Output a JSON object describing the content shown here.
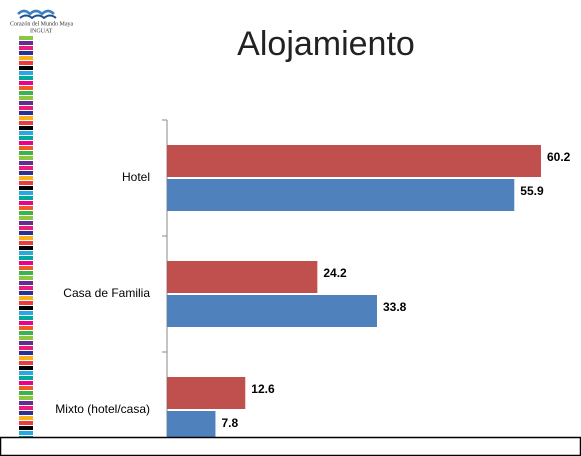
{
  "logo": {
    "line1": "Corazón del Mundo Maya",
    "line2": "INGUAT"
  },
  "chart_data": {
    "type": "bar",
    "orientation": "horizontal",
    "title": "Alojamiento",
    "categories": [
      "Hotel",
      "Casa de Familia",
      "Mixto (hotel/casa)"
    ],
    "series": [
      {
        "color": "#c0504d",
        "values": [
          60.2,
          24.2,
          12.6
        ]
      },
      {
        "color": "#4f81bd",
        "values": [
          55.9,
          33.8,
          7.8
        ]
      }
    ]
  }
}
